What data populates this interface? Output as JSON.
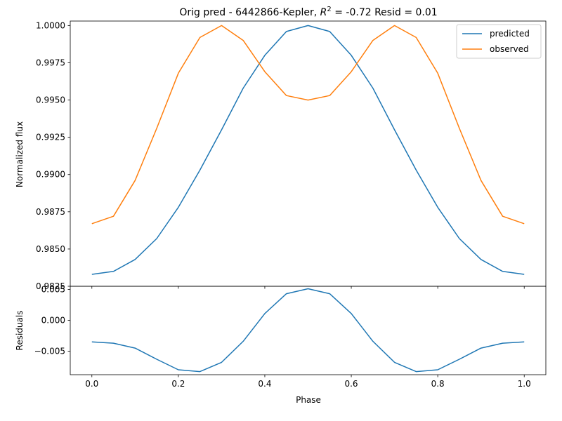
{
  "chart_data": {
    "type": "line",
    "title": "Orig pred - 6442866-Kepler, R² = -0.72 Resid = 0.01",
    "title_parts": {
      "prefix": "Orig pred - 6442866-Kepler, ",
      "r_symbol": "R",
      "r_exponent": "2",
      "suffix": " = -0.72 Resid = 0.01"
    },
    "xlabel": "Phase",
    "legend_placement": "top-right",
    "grid": false,
    "x_ticks": [
      "0.0",
      "0.2",
      "0.4",
      "0.6",
      "0.8",
      "1.0"
    ],
    "xlim": [
      -0.05,
      1.05
    ],
    "top_panel": {
      "ylabel": "Normalized flux",
      "ylim": [
        0.9825,
        1.0003
      ],
      "y_ticks": [
        "0.9825",
        "0.9850",
        "0.9875",
        "0.9900",
        "0.9925",
        "0.9950",
        "0.9975",
        "1.0000"
      ],
      "x": [
        0.0,
        0.05,
        0.1,
        0.15,
        0.2,
        0.25,
        0.3,
        0.35,
        0.4,
        0.45,
        0.5,
        0.55,
        0.6,
        0.65,
        0.7,
        0.75,
        0.8,
        0.85,
        0.9,
        0.95,
        1.0
      ],
      "series": [
        {
          "name": "predicted",
          "color": "#1f77b4",
          "values": [
            0.9833,
            0.9835,
            0.9843,
            0.9857,
            0.9878,
            0.9903,
            0.993,
            0.9958,
            0.998,
            0.9996,
            1.0,
            0.9996,
            0.998,
            0.9958,
            0.993,
            0.9903,
            0.9878,
            0.9857,
            0.9843,
            0.9835,
            0.9833
          ]
        },
        {
          "name": "observed",
          "color": "#ff7f0e",
          "values": [
            0.9867,
            0.9872,
            0.9896,
            0.9931,
            0.9968,
            0.9992,
            1.0,
            0.999,
            0.9969,
            0.9953,
            0.995,
            0.9953,
            0.9969,
            0.999,
            1.0,
            0.9992,
            0.9968,
            0.9931,
            0.9896,
            0.9872,
            0.9867
          ]
        }
      ]
    },
    "bottom_panel": {
      "ylabel": "Residuals",
      "ylim": [
        -0.0088,
        0.0055
      ],
      "y_ticks": [
        "−0.005",
        "0.000",
        "0.005"
      ],
      "y_tick_values": [
        -0.005,
        0.0,
        0.005
      ],
      "x": [
        0.0,
        0.05,
        0.1,
        0.15,
        0.2,
        0.25,
        0.3,
        0.35,
        0.4,
        0.45,
        0.5,
        0.55,
        0.6,
        0.65,
        0.7,
        0.75,
        0.8,
        0.85,
        0.9,
        0.95,
        1.0
      ],
      "series": [
        {
          "name": "residuals",
          "color": "#1f77b4",
          "values": [
            -0.0035,
            -0.0037,
            -0.0045,
            -0.0063,
            -0.008,
            -0.0083,
            -0.0068,
            -0.0034,
            0.0011,
            0.0043,
            0.0051,
            0.0043,
            0.0011,
            -0.0034,
            -0.0068,
            -0.0083,
            -0.008,
            -0.0063,
            -0.0045,
            -0.0037,
            -0.0035
          ]
        }
      ]
    }
  }
}
